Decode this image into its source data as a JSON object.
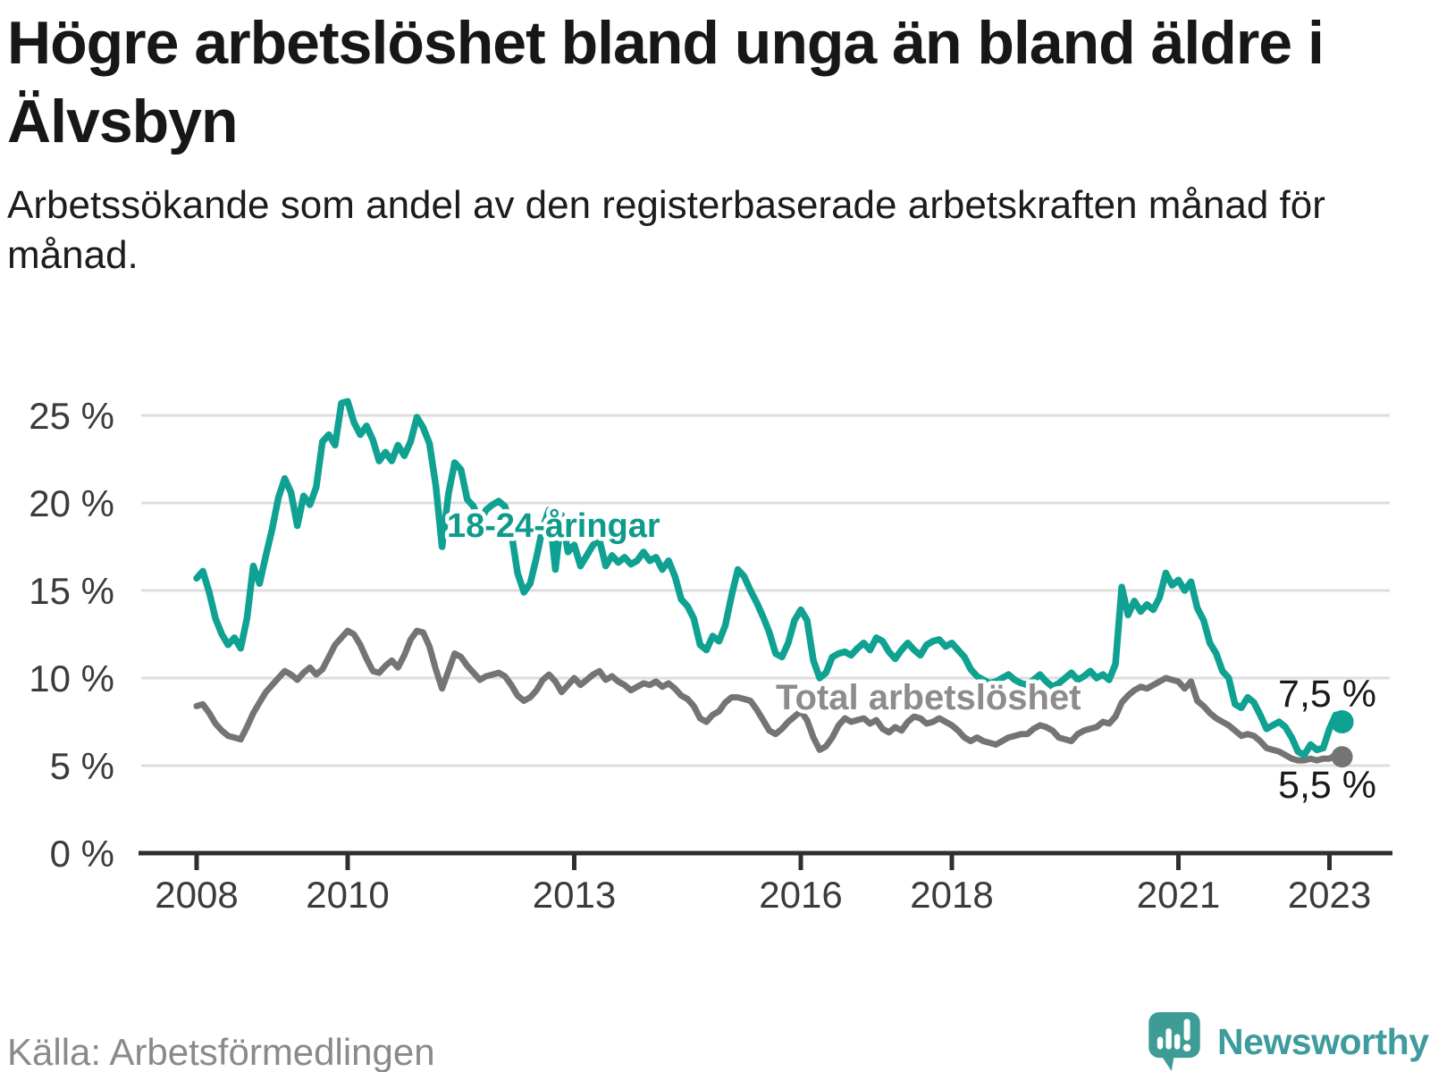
{
  "header": {
    "title": "Högre arbetslöshet bland unga än bland äldre i Älvsbyn",
    "subtitle": "Arbetssökande som andel av den registerbaserade arbetskraften månad för månad."
  },
  "footer": {
    "source": "Källa: Arbetsförmedlingen",
    "brand": "Newsworthy"
  },
  "colors": {
    "youth_line": "#0FA192",
    "youth_label": "#0E9B8C",
    "total_line": "#747474",
    "total_label": "#8C8C8C",
    "grid": "#DEDEDE",
    "axis": "#2E2E2E",
    "tick_text": "#3B3B3B",
    "end_label_text": "#1A1A1A",
    "brand_teal": "#3E9C96"
  },
  "chart_data": {
    "type": "line",
    "unit": "percent",
    "frequency": "monthly",
    "x_start": "2008-01",
    "x_end": "2023-03",
    "xlabel": "",
    "ylabel": "",
    "ylim": [
      0,
      26.5
    ],
    "grid": true,
    "legend_position": "inline-labels",
    "x_ticks": [
      {
        "year": 2008,
        "label": "2008"
      },
      {
        "year": 2010,
        "label": "2010"
      },
      {
        "year": 2013,
        "label": "2013"
      },
      {
        "year": 2016,
        "label": "2016"
      },
      {
        "year": 2018,
        "label": "2018"
      },
      {
        "year": 2021,
        "label": "2021"
      },
      {
        "year": 2023,
        "label": "2023"
      }
    ],
    "y_ticks": [
      {
        "value": 0,
        "label": "0 %"
      },
      {
        "value": 5,
        "label": "5 %"
      },
      {
        "value": 10,
        "label": "10 %"
      },
      {
        "value": 15,
        "label": "15 %"
      },
      {
        "value": 20,
        "label": "20 %"
      },
      {
        "value": 25,
        "label": "25 %"
      }
    ],
    "series": [
      {
        "name": "total",
        "label": "Total arbetslöshet",
        "end_label": "5,5 %",
        "values": [
          8.4,
          8.5,
          8.0,
          7.4,
          7.0,
          6.7,
          6.6,
          6.5,
          7.2,
          8.0,
          8.6,
          9.2,
          9.6,
          10.0,
          10.4,
          10.2,
          9.9,
          10.3,
          10.6,
          10.2,
          10.5,
          11.2,
          11.9,
          12.3,
          12.7,
          12.5,
          11.9,
          11.1,
          10.4,
          10.3,
          10.7,
          11.0,
          10.6,
          11.3,
          12.2,
          12.7,
          12.6,
          11.8,
          10.5,
          9.4,
          10.4,
          11.4,
          11.2,
          10.7,
          10.3,
          9.9,
          10.1,
          10.2,
          10.3,
          10.1,
          9.6,
          9.0,
          8.7,
          8.9,
          9.3,
          9.9,
          10.2,
          9.8,
          9.2,
          9.6,
          10.0,
          9.6,
          9.9,
          10.2,
          10.4,
          9.9,
          10.1,
          9.8,
          9.6,
          9.3,
          9.5,
          9.7,
          9.6,
          9.8,
          9.5,
          9.7,
          9.4,
          9.0,
          8.8,
          8.4,
          7.7,
          7.5,
          7.9,
          8.1,
          8.6,
          8.9,
          8.9,
          8.8,
          8.7,
          8.2,
          7.6,
          7.0,
          6.8,
          7.1,
          7.5,
          7.8,
          8.1,
          7.6,
          6.6,
          5.9,
          6.1,
          6.6,
          7.3,
          7.7,
          7.5,
          7.6,
          7.7,
          7.4,
          7.6,
          7.1,
          6.9,
          7.2,
          7.0,
          7.5,
          7.8,
          7.7,
          7.4,
          7.5,
          7.7,
          7.5,
          7.3,
          7.0,
          6.6,
          6.4,
          6.6,
          6.4,
          6.3,
          6.2,
          6.4,
          6.6,
          6.7,
          6.8,
          6.8,
          7.1,
          7.3,
          7.2,
          7.0,
          6.6,
          6.5,
          6.4,
          6.8,
          7.0,
          7.1,
          7.2,
          7.5,
          7.4,
          7.8,
          8.6,
          9.0,
          9.3,
          9.5,
          9.4,
          9.6,
          9.8,
          10.0,
          9.9,
          9.8,
          9.4,
          9.8,
          8.7,
          8.4,
          8.0,
          7.7,
          7.5,
          7.3,
          7.0,
          6.7,
          6.8,
          6.7,
          6.4,
          6.0,
          5.9,
          5.8,
          5.6,
          5.4,
          5.3,
          5.3,
          5.4,
          5.3,
          5.4,
          5.4,
          5.6,
          5.5
        ]
      },
      {
        "name": "youth",
        "label": "18-24-åringar",
        "end_label": "7,5 %",
        "values": [
          15.7,
          16.1,
          14.9,
          13.4,
          12.5,
          11.9,
          12.3,
          11.7,
          13.4,
          16.4,
          15.4,
          17.0,
          18.5,
          20.3,
          21.4,
          20.6,
          18.7,
          20.4,
          19.9,
          20.9,
          23.5,
          23.9,
          23.3,
          25.7,
          25.8,
          24.6,
          23.9,
          24.4,
          23.6,
          22.4,
          22.9,
          22.4,
          23.3,
          22.7,
          23.5,
          24.9,
          24.3,
          23.4,
          21.0,
          17.5,
          20.5,
          22.3,
          21.9,
          20.2,
          19.8,
          18.9,
          19.6,
          19.9,
          20.1,
          19.8,
          18.3,
          16.0,
          14.9,
          15.4,
          16.9,
          18.6,
          19.6,
          16.2,
          19.3,
          17.2,
          17.6,
          16.4,
          17.0,
          17.6,
          17.9,
          16.4,
          17.0,
          16.6,
          16.9,
          16.5,
          16.7,
          17.2,
          16.7,
          16.9,
          16.2,
          16.7,
          15.8,
          14.5,
          14.1,
          13.4,
          11.9,
          11.6,
          12.4,
          12.1,
          13.0,
          14.7,
          16.2,
          15.8,
          15.0,
          14.3,
          13.5,
          12.6,
          11.4,
          11.2,
          12.0,
          13.3,
          13.9,
          13.3,
          11.0,
          10.0,
          10.3,
          11.2,
          11.4,
          11.5,
          11.3,
          11.7,
          12.0,
          11.6,
          12.3,
          12.1,
          11.5,
          11.1,
          11.6,
          12.0,
          11.6,
          11.3,
          11.9,
          12.1,
          12.2,
          11.8,
          12.0,
          11.6,
          11.2,
          10.5,
          10.1,
          9.9,
          9.7,
          9.8,
          10.0,
          10.2,
          9.9,
          9.7,
          9.6,
          9.9,
          10.2,
          9.8,
          9.5,
          9.7,
          10.0,
          10.3,
          9.9,
          10.1,
          10.4,
          10.0,
          10.2,
          9.9,
          10.8,
          15.2,
          13.6,
          14.4,
          13.8,
          14.2,
          13.9,
          14.6,
          16.0,
          15.3,
          15.6,
          15.0,
          15.5,
          14.0,
          13.3,
          12.0,
          11.4,
          10.4,
          10.0,
          8.5,
          8.3,
          8.9,
          8.6,
          7.9,
          7.1,
          7.3,
          7.5,
          7.2,
          6.6,
          5.8,
          5.6,
          6.2,
          5.9,
          6.0,
          7.1,
          7.9,
          7.5
        ]
      }
    ]
  }
}
